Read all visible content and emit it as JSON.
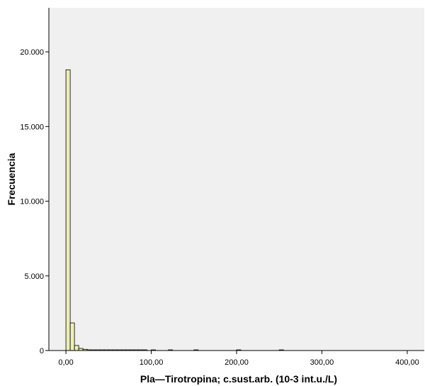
{
  "chart_data": {
    "type": "bar",
    "subtype": "histogram",
    "title": "",
    "xlabel": "Pla—Tirotropina; c.sust.arb. (10-3 int.u./L)",
    "ylabel": "Frecuencia",
    "xlim": [
      -20,
      420
    ],
    "ylim": [
      0,
      22950
    ],
    "x_ticks": [
      0,
      100,
      200,
      300,
      400
    ],
    "x_tick_labels": [
      "0,00",
      "100,00",
      "200,00",
      "300,00",
      "400,00"
    ],
    "y_ticks": [
      0,
      5000,
      10000,
      15000,
      20000
    ],
    "y_tick_labels": [
      "0",
      "5.000",
      "10.000",
      "15.000",
      "20.000"
    ],
    "bin_width": 5,
    "bins_start": [
      0,
      5,
      10,
      15,
      20,
      25,
      30,
      35,
      40,
      45,
      50,
      55,
      60,
      65,
      70,
      75,
      80,
      85,
      90,
      100,
      120,
      150,
      200,
      250
    ],
    "values": [
      18800,
      1850,
      340,
      140,
      80,
      50,
      40,
      30,
      25,
      20,
      18,
      15,
      12,
      10,
      9,
      8,
      7,
      6,
      5,
      5,
      4,
      3,
      2,
      1
    ],
    "grid": false,
    "legend": "none",
    "colors": {
      "bar_fill": "#EDEDB9",
      "bar_stroke": "#000000",
      "plot_background": "#F0F0F0"
    }
  }
}
